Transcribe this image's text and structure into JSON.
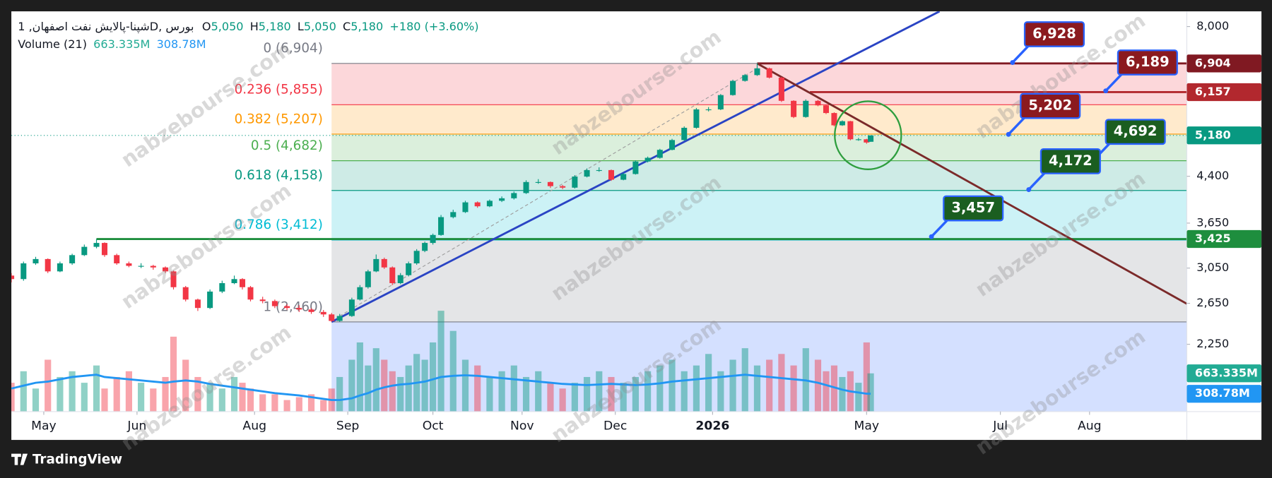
{
  "header": {
    "symbol": "شپنا-پالایش نفت اصفهان, 1D, بورس",
    "ohlc": [
      {
        "key": "O",
        "value": "5,050"
      },
      {
        "key": "H",
        "value": "5,180"
      },
      {
        "key": "L",
        "value": "5,050"
      },
      {
        "key": "C",
        "value": "5,180"
      }
    ],
    "change": "+180 (+3.60%)",
    "volume_title": "Volume (21)",
    "volume_values": [
      "663.335M",
      "308.78M"
    ]
  },
  "watermark": "nabzebourse.com",
  "footer": {
    "brand": "TradingView"
  },
  "chart_data": {
    "type": "candlestick",
    "x": [
      0,
      3,
      6,
      9,
      12,
      15,
      18,
      21,
      23,
      26,
      29,
      32,
      35,
      38,
      40,
      43,
      46,
      49,
      52,
      55,
      57,
      59,
      62,
      65,
      68,
      71,
      74,
      77,
      79,
      81,
      84,
      86,
      88,
      90,
      92,
      94,
      96,
      98,
      100,
      102,
      104,
      106,
      109,
      112,
      115,
      118,
      121,
      124,
      127,
      130,
      133,
      136,
      139,
      142,
      145,
      148,
      151,
      154,
      157,
      160,
      163,
      166,
      169,
      172,
      175,
      178,
      181,
      184,
      187,
      190,
      193,
      196,
      199,
      201,
      203,
      205,
      207,
      209,
      211,
      212
    ],
    "open": [
      2960,
      2919,
      3108,
      3162,
      3010,
      3108,
      3212,
      3320,
      3372,
      3212,
      3108,
      3077,
      3077,
      3058,
      3010,
      2826,
      2690,
      2601,
      2777,
      2872,
      2919,
      2826,
      2690,
      2674,
      2620,
      2601,
      2585,
      2560,
      2535,
      2470,
      2519,
      2690,
      2826,
      3010,
      3162,
      3058,
      2872,
      2965,
      3108,
      3267,
      3372,
      3481,
      3738,
      3814,
      3965,
      3903,
      3990,
      4030,
      4115,
      4300,
      4300,
      4230,
      4205,
      4395,
      4510,
      4510,
      4340,
      4440,
      4667,
      4737,
      4890,
      5085,
      5340,
      5747,
      5747,
      6085,
      6440,
      6590,
      6770,
      6524,
      5947,
      5575,
      5947,
      5840,
      5664,
      5393,
      5482,
      5100,
      5100,
      5050
    ],
    "high": [
      2990,
      3130,
      3190,
      3170,
      3130,
      3230,
      3350,
      3425,
      3380,
      3230,
      3130,
      3110,
      3090,
      3070,
      3020,
      2840,
      2700,
      2800,
      2900,
      2960,
      2930,
      2840,
      2720,
      2690,
      2640,
      2630,
      2600,
      2580,
      2550,
      2540,
      2710,
      2850,
      3030,
      3220,
      3180,
      3070,
      2990,
      3130,
      3290,
      3390,
      3500,
      3770,
      3850,
      3990,
      3980,
      4010,
      4060,
      4140,
      4330,
      4350,
      4310,
      4250,
      4420,
      4540,
      4560,
      4520,
      4460,
      4690,
      4760,
      4910,
      5110,
      5370,
      5780,
      5800,
      6110,
      6470,
      6620,
      6904,
      6790,
      6540,
      5960,
      5980,
      5970,
      5860,
      5680,
      5500,
      5490,
      5130,
      5110,
      5180
    ],
    "low": [
      2880,
      2900,
      3090,
      2990,
      3000,
      3090,
      3200,
      3300,
      3190,
      3090,
      3060,
      3050,
      3030,
      2990,
      2800,
      2670,
      2570,
      2590,
      2760,
      2860,
      2800,
      2670,
      2650,
      2600,
      2580,
      2560,
      2540,
      2510,
      2460,
      2460,
      2510,
      2680,
      2810,
      3000,
      3040,
      2850,
      2860,
      2950,
      3090,
      3250,
      3350,
      3470,
      3720,
      3800,
      3880,
      3890,
      3970,
      4010,
      4100,
      4270,
      4200,
      4180,
      4190,
      4380,
      4480,
      4320,
      4330,
      4430,
      4650,
      4720,
      4880,
      5070,
      5320,
      5700,
      5730,
      6070,
      6420,
      6570,
      6500,
      5920,
      5550,
      5560,
      5820,
      5640,
      5370,
      5380,
      5080,
      5070,
      5010,
      5050
    ],
    "close": [
      2919,
      3108,
      3162,
      3010,
      3108,
      3212,
      3320,
      3372,
      3212,
      3108,
      3077,
      3077,
      3058,
      3010,
      2826,
      2690,
      2601,
      2777,
      2872,
      2919,
      2826,
      2690,
      2674,
      2620,
      2601,
      2585,
      2560,
      2535,
      2470,
      2519,
      2690,
      2826,
      3010,
      3162,
      3058,
      2872,
      2965,
      3108,
      3267,
      3372,
      3481,
      3738,
      3814,
      3965,
      3903,
      3990,
      4030,
      4115,
      4300,
      4300,
      4230,
      4205,
      4395,
      4510,
      4510,
      4340,
      4440,
      4667,
      4737,
      4890,
      5085,
      5340,
      5747,
      5747,
      6085,
      6440,
      6590,
      6770,
      6524,
      5947,
      5575,
      5947,
      5840,
      5664,
      5393,
      5482,
      5100,
      5100,
      5035,
      5180
    ],
    "up_color": "#089981",
    "down_color": "#f23645",
    "xlim": [
      0,
      290
    ],
    "xticks": [
      {
        "value": 8,
        "label": "May"
      },
      {
        "value": 31,
        "label": "Jun"
      },
      {
        "value": 60,
        "label": "Aug"
      },
      {
        "value": 83,
        "label": "Sep"
      },
      {
        "value": 104,
        "label": "Oct"
      },
      {
        "value": 126,
        "label": "Nov"
      },
      {
        "value": 149,
        "label": "Dec"
      },
      {
        "value": 173,
        "label": "2026"
      },
      {
        "value": 211,
        "label": "May"
      },
      {
        "value": 244,
        "label": "Jul"
      },
      {
        "value": 266,
        "label": "Aug"
      }
    ],
    "ylim": [
      1720,
      8500
    ],
    "log_scale": true,
    "yticks": [
      {
        "value": 8000,
        "label": "8,000"
      },
      {
        "value": 4400,
        "label": "4,400"
      },
      {
        "value": 3650,
        "label": "3,650"
      },
      {
        "value": 3050,
        "label": "3,050"
      },
      {
        "value": 2650,
        "label": "2,650"
      },
      {
        "value": 2250,
        "label": "2,250"
      }
    ],
    "volume": [
      500,
      700,
      400,
      900,
      600,
      700,
      500,
      800,
      400,
      600,
      700,
      500,
      400,
      600,
      1300,
      900,
      600,
      500,
      400,
      600,
      500,
      400,
      300,
      300,
      200,
      250,
      300,
      200,
      400,
      600,
      900,
      1200,
      800,
      1100,
      900,
      700,
      600,
      800,
      1000,
      900,
      1200,
      1750,
      1400,
      900,
      800,
      600,
      700,
      800,
      600,
      700,
      500,
      400,
      500,
      600,
      700,
      600,
      500,
      600,
      700,
      800,
      900,
      700,
      800,
      1000,
      700,
      900,
      1100,
      800,
      900,
      1000,
      800,
      1100,
      900,
      700,
      800,
      600,
      700,
      500,
      1200,
      663.335
    ],
    "volume_ma": [
      400,
      450,
      500,
      520,
      560,
      600,
      620,
      640,
      600,
      580,
      560,
      540,
      520,
      500,
      520,
      540,
      520,
      480,
      450,
      420,
      400,
      380,
      350,
      320,
      300,
      280,
      250,
      220,
      200,
      200,
      230,
      280,
      320,
      380,
      420,
      450,
      470,
      480,
      500,
      520,
      560,
      600,
      620,
      630,
      620,
      600,
      580,
      560,
      540,
      520,
      500,
      480,
      470,
      460,
      470,
      480,
      470,
      460,
      470,
      490,
      520,
      540,
      560,
      580,
      600,
      620,
      640,
      620,
      600,
      580,
      560,
      540,
      500,
      460,
      420,
      380,
      350,
      330,
      310,
      308.78
    ],
    "volume_ma_color": "#2196f3",
    "volume_ylim": [
      0,
      1800
    ],
    "volume_tags": [
      {
        "value": 663.335,
        "label": "663.335M",
        "color": "#22ab94"
      },
      {
        "value": 308.78,
        "label": "308.78M",
        "color": "#2196f3"
      }
    ],
    "fib": {
      "x_start": 79,
      "levels": [
        {
          "value": 6904,
          "label": "0 (6,904)",
          "color": "#787b86"
        },
        {
          "value": 5855,
          "label": "0.236 (5,855)",
          "color": "#f23645"
        },
        {
          "value": 5207,
          "label": "0.382 (5,207)",
          "color": "#ff9800"
        },
        {
          "value": 4682,
          "label": "0.5 (4,682)",
          "color": "#4caf50"
        },
        {
          "value": 4158,
          "label": "0.618 (4,158)",
          "color": "#089981"
        },
        {
          "value": 3412,
          "label": "0.786 (3,412)",
          "color": "#00bcd4"
        },
        {
          "value": 2460,
          "label": "1 (2,460)",
          "color": "#787b86"
        }
      ]
    },
    "price_tags": [
      {
        "value": 6904,
        "label": "6,904",
        "color": "#801922",
        "line_from": 184
      },
      {
        "value": 6157,
        "label": "6,157",
        "color": "#b2282e",
        "line_from": 197
      },
      {
        "value": 5180,
        "label": "5,180",
        "color": "#089981",
        "line_from": 0,
        "line_style": "dotted"
      },
      {
        "value": 3425,
        "label": "3,425",
        "color": "#1e8e3e",
        "line_from": 21
      }
    ],
    "trendlines": [
      {
        "x": [
          79,
          229
        ],
        "y": [
          2460,
          8500
        ],
        "color": "#2a44c4"
      },
      {
        "x": [
          184,
          290
        ],
        "y": [
          6904,
          2645
        ],
        "color": "#7b2a2a"
      },
      {
        "x": [
          81,
          184
        ],
        "y": [
          2519,
          6770
        ],
        "color": "#9e9e9e",
        "line_style": "dashed"
      }
    ],
    "callouts": [
      {
        "value": 6928,
        "label": "6,928",
        "x": 247,
        "color": "#8b1a1f"
      },
      {
        "value": 6189,
        "label": "6,189",
        "x": 270,
        "color": "#8b1a1f"
      },
      {
        "value": 5202,
        "label": "5,202",
        "x": 246,
        "color": "#8b1a1f"
      },
      {
        "value": 4692,
        "label": "4,692",
        "x": 267,
        "color": "#1b5e20"
      },
      {
        "value": 4172,
        "label": "4,172",
        "x": 251,
        "color": "#1b5e20"
      },
      {
        "value": 3457,
        "label": "3,457",
        "x": 227,
        "color": "#1b5e20"
      }
    ]
  }
}
